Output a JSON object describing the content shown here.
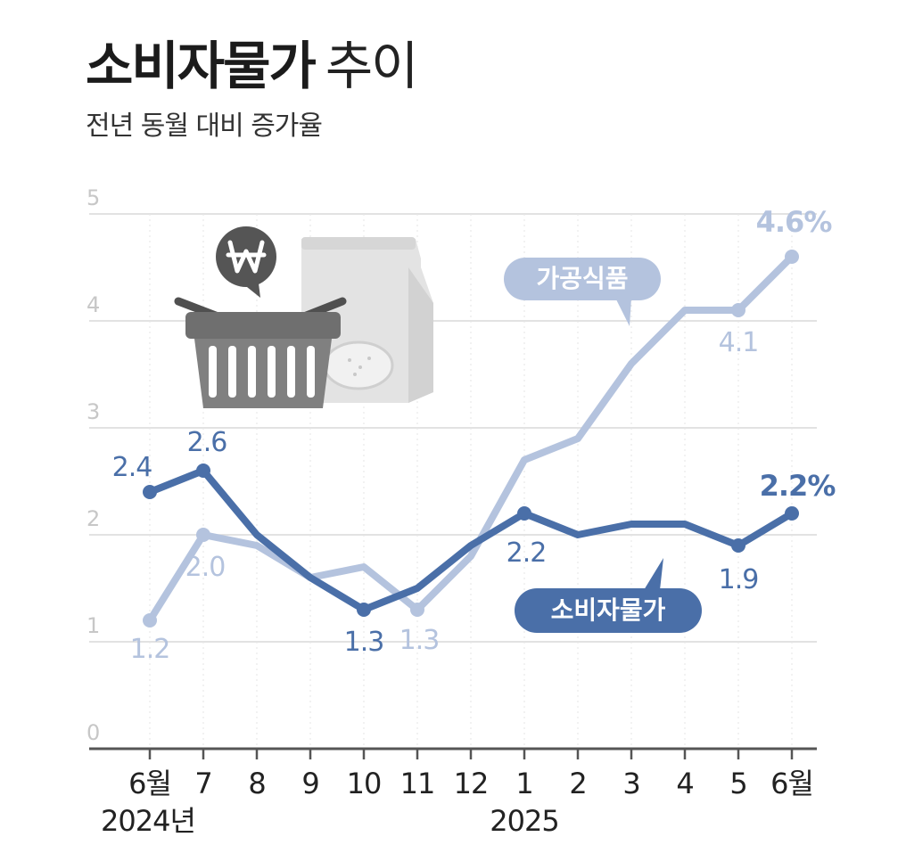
{
  "title": {
    "main": "소비자물가",
    "sub": "추이"
  },
  "subtitle": "전년 동월 대비 증가율",
  "colors": {
    "processed_food": "#b4c3de",
    "consumer_price": "#4a6fa8",
    "food_label_fill": "#b4c3de",
    "cpi_label_fill": "#4a6fa8",
    "grid": "#d9d9d9",
    "axis": "#555555",
    "tick_text": "#c7c7c7",
    "x_text": "#222222"
  },
  "chart_data": {
    "type": "line",
    "x": [
      "6월",
      "7",
      "8",
      "9",
      "10",
      "11",
      "12",
      "1",
      "2",
      "3",
      "4",
      "5",
      "6월"
    ],
    "x_year_labels": [
      {
        "index": 0,
        "text": "2024년"
      },
      {
        "index": 7,
        "text": "2025"
      }
    ],
    "ylim": [
      0,
      5
    ],
    "yticks": [
      0,
      1,
      2,
      3,
      4,
      5
    ],
    "grid": true,
    "series": [
      {
        "name": "가공식품",
        "color_key": "processed_food",
        "values": [
          1.2,
          2.0,
          1.9,
          1.6,
          1.7,
          1.3,
          1.8,
          2.7,
          2.9,
          3.6,
          4.1,
          4.1,
          4.6
        ],
        "labels": [
          {
            "index": 0,
            "text": "1.2"
          },
          {
            "index": 1,
            "text": "2.0"
          },
          {
            "index": 5,
            "text": "1.3"
          },
          {
            "index": 11,
            "text": "4.1"
          },
          {
            "index": 12,
            "text": "4.6%"
          }
        ]
      },
      {
        "name": "소비자물가",
        "color_key": "consumer_price",
        "values": [
          2.4,
          2.6,
          2.0,
          1.6,
          1.3,
          1.5,
          1.9,
          2.2,
          2.0,
          2.1,
          2.1,
          1.9,
          2.2
        ],
        "labels": [
          {
            "index": 0,
            "text": "2.4"
          },
          {
            "index": 1,
            "text": "2.6"
          },
          {
            "index": 4,
            "text": "1.3"
          },
          {
            "index": 7,
            "text": "2.2"
          },
          {
            "index": 11,
            "text": "1.9"
          },
          {
            "index": 12,
            "text": "2.2%"
          }
        ]
      }
    ]
  },
  "illustration": {
    "icon": "won-speech-bubble-icon"
  }
}
